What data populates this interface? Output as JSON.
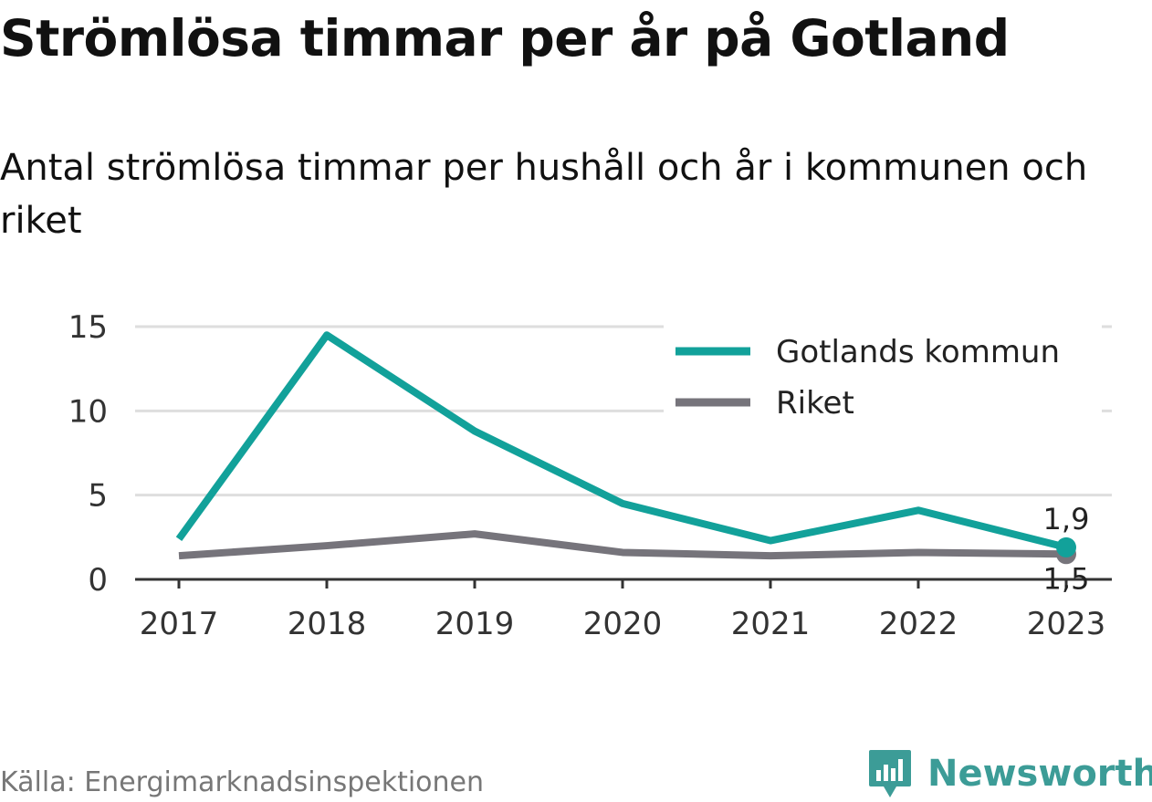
{
  "colors": {
    "gotland": "#12a19a",
    "riket": "#76747b",
    "grid": "#dedede",
    "brand": "#3c9c97"
  },
  "source": "Källa: Energimarknadsinspektionen",
  "brand": {
    "name": "Newsworthy",
    "logo_icon": "bar-chart-speech-bubble-icon"
  },
  "chart_data": {
    "type": "line",
    "title": "Strömlösa timmar per år på Gotland",
    "subtitle": "Antal strömlösa timmar per hushåll och år i kommunen och riket",
    "x": [
      "2017",
      "2018",
      "2019",
      "2020",
      "2021",
      "2022",
      "2023"
    ],
    "series": [
      {
        "name": "Gotlands kommun",
        "values": [
          2.4,
          14.5,
          8.8,
          4.5,
          2.3,
          4.1,
          1.9
        ],
        "end_label": "1,9"
      },
      {
        "name": "Riket",
        "values": [
          1.4,
          2.0,
          2.7,
          1.6,
          1.4,
          1.6,
          1.5
        ],
        "end_label": "1,5"
      }
    ],
    "ylim": [
      0,
      15
    ],
    "yticks": [
      "0",
      "5",
      "10",
      "15"
    ],
    "grid": true,
    "legend": "top-right"
  }
}
